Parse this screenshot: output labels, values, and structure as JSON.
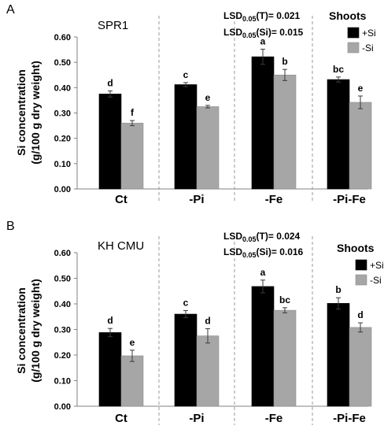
{
  "chart_data": [
    {
      "type": "bar",
      "panel_label": "A",
      "title": "SPR1",
      "ylabel": "Si concentration (g/100 g dry weight)",
      "categories": [
        "Ct",
        "-Pi",
        "-Fe",
        "-Pi-Fe"
      ],
      "ylim": [
        0,
        0.6
      ],
      "yticks": [
        "0.00",
        "0.10",
        "0.20",
        "0.30",
        "0.40",
        "0.50",
        "0.60"
      ],
      "legend_title": "Shoots",
      "legend_position": "top-right",
      "lsd_lines": [
        "LSD0.05(T)= 0.021",
        "LSD0.05(Si)= 0.015"
      ],
      "lsd": {
        "T": 0.021,
        "Si": 0.015
      },
      "series": [
        {
          "name": "+Si",
          "color": "#000000",
          "values": [
            0.375,
            0.412,
            0.522,
            0.432
          ],
          "errors": [
            0.012,
            0.008,
            0.03,
            0.01
          ],
          "letters": [
            "d",
            "c",
            "a",
            "bc"
          ]
        },
        {
          "name": "-Si",
          "color": "#a6a6a6",
          "values": [
            0.26,
            0.325,
            0.45,
            0.342
          ],
          "errors": [
            0.01,
            0.005,
            0.022,
            0.025
          ],
          "letters": [
            "f",
            "e",
            "b",
            "e"
          ]
        }
      ],
      "grid": false
    },
    {
      "type": "bar",
      "panel_label": "B",
      "title": "KH CMU",
      "ylabel": "Si concentration (g/100 g dry weight)",
      "categories": [
        "Ct",
        "-Pi",
        "-Fe",
        "-Pi-Fe"
      ],
      "ylim": [
        0,
        0.6
      ],
      "yticks": [
        "0.00",
        "0.10",
        "0.20",
        "0.30",
        "0.40",
        "0.50",
        "0.60"
      ],
      "legend_title": "Shoots",
      "legend_position": "top-right",
      "lsd_lines": [
        "LSD0.05(T)= 0.024",
        "LSD0.05(Si)= 0.016"
      ],
      "lsd": {
        "T": 0.024,
        "Si": 0.016
      },
      "series": [
        {
          "name": "+Si",
          "color": "#000000",
          "values": [
            0.288,
            0.36,
            0.468,
            0.402
          ],
          "errors": [
            0.016,
            0.014,
            0.025,
            0.022
          ],
          "letters": [
            "d",
            "c",
            "a",
            "b"
          ]
        },
        {
          "name": "-Si",
          "color": "#a6a6a6",
          "values": [
            0.197,
            0.275,
            0.375,
            0.308
          ],
          "errors": [
            0.022,
            0.028,
            0.01,
            0.018
          ],
          "letters": [
            "e",
            "d",
            "bc",
            "d"
          ]
        }
      ],
      "grid": false
    }
  ]
}
